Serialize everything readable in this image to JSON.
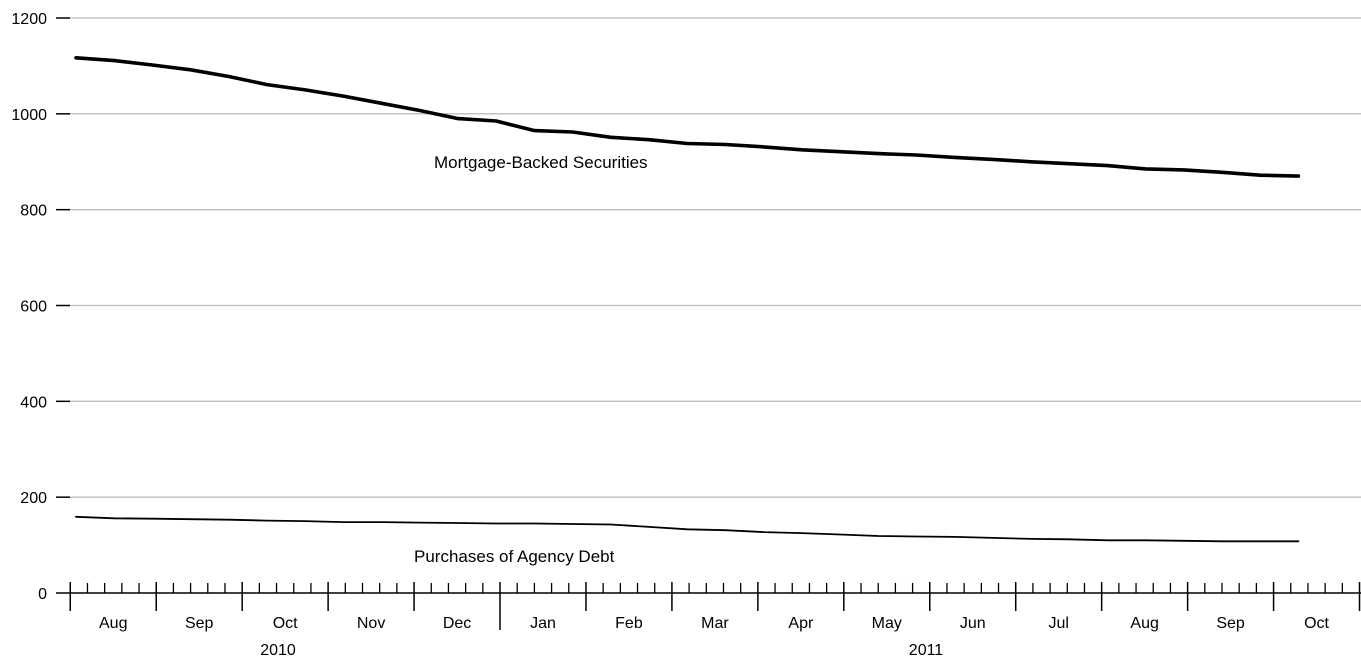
{
  "chart_data": {
    "type": "line",
    "title": "",
    "xlabel": "",
    "ylabel": "",
    "ylim": [
      0,
      1200
    ],
    "yticks": [
      "0",
      "200",
      "400",
      "600",
      "800",
      "1000",
      "1200"
    ],
    "grid": true,
    "month_labels": [
      "Aug",
      "Sep",
      "Oct",
      "Nov",
      "Dec",
      "Jan",
      "Feb",
      "Mar",
      "Apr",
      "May",
      "Jun",
      "Jul",
      "Aug",
      "Sep",
      "Oct"
    ],
    "year_labels": [
      "2010",
      "2011"
    ],
    "x_weeks": [
      0,
      2,
      4,
      6,
      8,
      10,
      12,
      14,
      16,
      18,
      20,
      22,
      24,
      26,
      28,
      30,
      32,
      34,
      36,
      38,
      40,
      42,
      44,
      46,
      48,
      50,
      52,
      54,
      56,
      58,
      60,
      62,
      64
    ],
    "series": [
      {
        "name": "Mortgage-Backed Securities",
        "width": "thick",
        "values": [
          1117,
          1111,
          1102,
          1092,
          1078,
          1061,
          1050,
          1037,
          1022,
          1007,
          990,
          985,
          965,
          962,
          951,
          946,
          938,
          936,
          931,
          925,
          921,
          917,
          914,
          909,
          905,
          900,
          896,
          892,
          885,
          883,
          878,
          872,
          870
        ]
      },
      {
        "name": "Purchases of Agency Debt",
        "width": "thin",
        "values": [
          159,
          156,
          155,
          154,
          153,
          151,
          150,
          148,
          148,
          147,
          146,
          145,
          145,
          144,
          143,
          138,
          133,
          131,
          127,
          125,
          122,
          119,
          118,
          117,
          115,
          113,
          112,
          110,
          110,
          109,
          108,
          108,
          108
        ]
      }
    ]
  }
}
